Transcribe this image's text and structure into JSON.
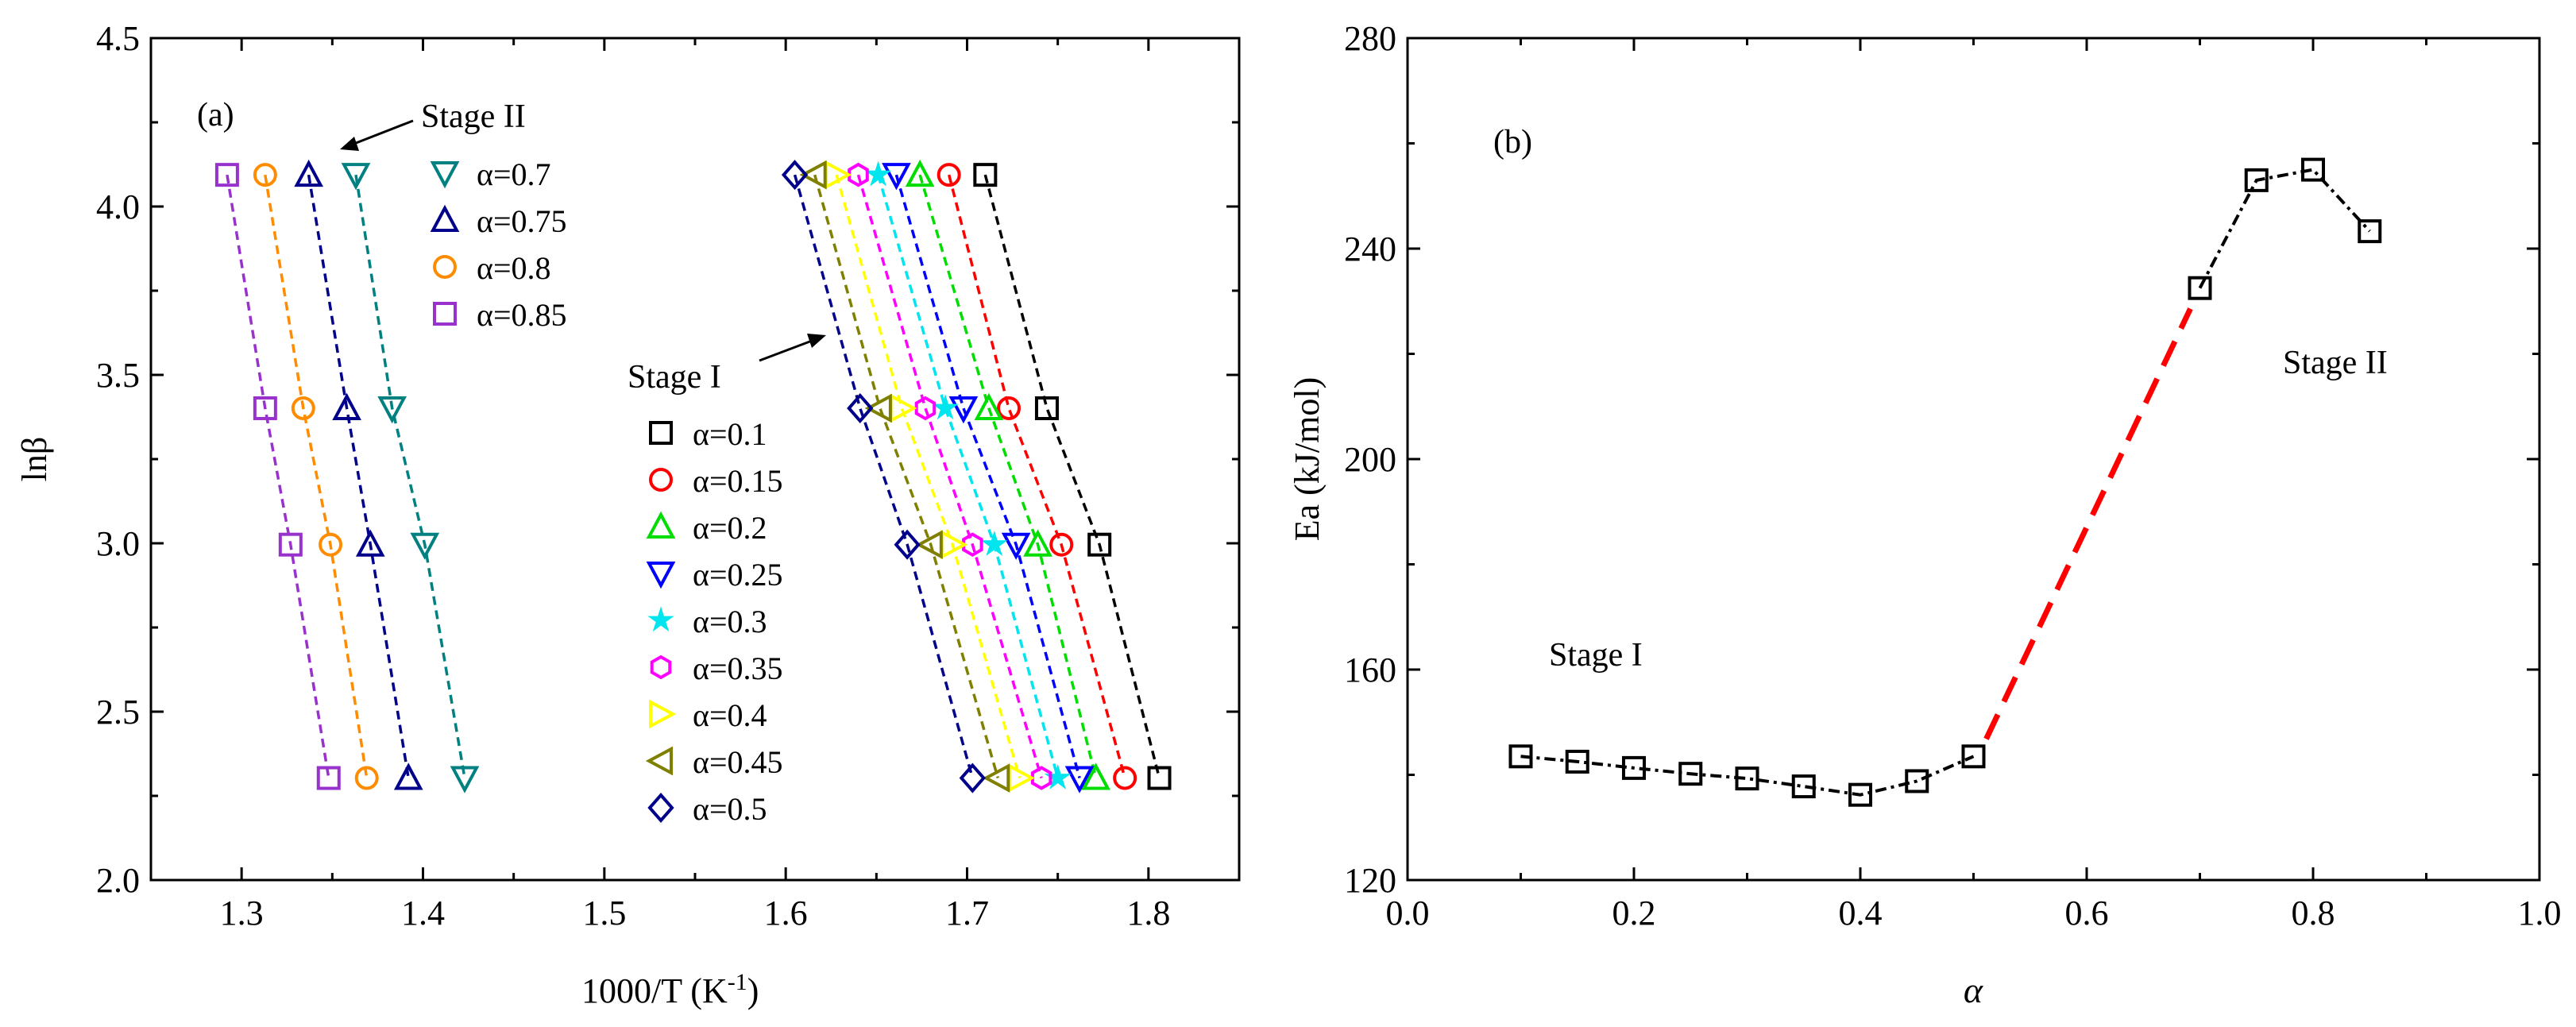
{
  "chart_data": [
    {
      "type": "scatter",
      "panel_label": "(a)",
      "xlabel": "1000/T (K",
      "xlabel_sup": "-1",
      "xlabel_close": ")",
      "ylabel": "lnβ",
      "xlim": [
        1.25,
        1.85
      ],
      "ylim": [
        2.0,
        4.5
      ],
      "xticks": [
        1.3,
        1.4,
        1.5,
        1.6,
        1.7,
        1.8
      ],
      "xtick_labels": [
        "1.3",
        "1.4",
        "1.5",
        "1.6",
        "1.7",
        "1.8"
      ],
      "yticks": [
        2.0,
        2.5,
        3.0,
        3.5,
        4.0,
        4.5
      ],
      "ytick_labels": [
        "2.0",
        "2.5",
        "3.0",
        "3.5",
        "4.0",
        "4.5"
      ],
      "y_levels": [
        4.094,
        3.401,
        2.996,
        2.303
      ],
      "annotations": {
        "stage2": "Stage II",
        "stage1": "Stage I"
      },
      "series": [
        {
          "name": "α=0.1",
          "group": "stage1",
          "marker": "square",
          "color": "#000000",
          "x": [
            1.71,
            1.744,
            1.773,
            1.806
          ]
        },
        {
          "name": "α=0.15",
          "group": "stage1",
          "marker": "circle",
          "color": "#ff0000",
          "x": [
            1.69,
            1.723,
            1.752,
            1.787
          ]
        },
        {
          "name": "α=0.2",
          "group": "stage1",
          "marker": "triangle",
          "color": "#00dd00",
          "x": [
            1.674,
            1.712,
            1.739,
            1.771
          ]
        },
        {
          "name": "α=0.25",
          "group": "stage1",
          "marker": "tri-down",
          "color": "#0000ff",
          "x": [
            1.661,
            1.698,
            1.727,
            1.762
          ]
        },
        {
          "name": "α=0.3",
          "group": "stage1",
          "marker": "star",
          "color": "#00e5ee",
          "x": [
            1.651,
            1.688,
            1.715,
            1.75
          ]
        },
        {
          "name": "α=0.35",
          "group": "stage1",
          "marker": "hexagon",
          "color": "#ff00ff",
          "x": [
            1.64,
            1.677,
            1.703,
            1.741
          ]
        },
        {
          "name": "α=0.4",
          "group": "stage1",
          "marker": "tri-right",
          "color": "#ffff00",
          "x": [
            1.628,
            1.664,
            1.692,
            1.729
          ]
        },
        {
          "name": "α=0.45",
          "group": "stage1",
          "marker": "tri-left",
          "color": "#808000",
          "x": [
            1.616,
            1.652,
            1.68,
            1.717
          ]
        },
        {
          "name": "α=0.5",
          "group": "stage1",
          "marker": "diamond",
          "color": "#00008b",
          "x": [
            1.605,
            1.641,
            1.667,
            1.703
          ]
        },
        {
          "name": "α=0.7",
          "group": "stage2",
          "marker": "tri-down",
          "color": "#008080",
          "x": [
            1.363,
            1.383,
            1.401,
            1.423
          ]
        },
        {
          "name": "α=0.75",
          "group": "stage2",
          "marker": "triangle",
          "color": "#00008b",
          "x": [
            1.337,
            1.358,
            1.371,
            1.392
          ]
        },
        {
          "name": "α=0.8",
          "group": "stage2",
          "marker": "circle",
          "color": "#ff8c00",
          "x": [
            1.313,
            1.334,
            1.349,
            1.369
          ]
        },
        {
          "name": "α=0.85",
          "group": "stage2",
          "marker": "square",
          "color": "#9932cc",
          "x": [
            1.292,
            1.313,
            1.327,
            1.348
          ]
        }
      ]
    },
    {
      "type": "line",
      "panel_label": "(b)",
      "xlabel": "α",
      "ylabel": "Ea (kJ/mol)",
      "xlim": [
        0.0,
        1.0
      ],
      "ylim": [
        120,
        280
      ],
      "xticks": [
        0.0,
        0.2,
        0.4,
        0.6,
        0.8,
        1.0
      ],
      "xtick_labels": [
        "0.0",
        "0.2",
        "0.4",
        "0.6",
        "0.8",
        "1.0"
      ],
      "yticks": [
        120,
        160,
        200,
        240,
        280
      ],
      "ytick_labels": [
        "120",
        "160",
        "200",
        "240",
        "280"
      ],
      "annotations": {
        "stage1": "Stage I",
        "stage2": "Stage II"
      },
      "series": [
        {
          "name": "Ea",
          "marker": "square",
          "color": "#000000",
          "x": [
            0.1,
            0.15,
            0.2,
            0.25,
            0.3,
            0.35,
            0.4,
            0.45,
            0.5,
            0.7,
            0.75,
            0.8,
            0.85
          ],
          "y": [
            143.5,
            142.5,
            141.3,
            140.2,
            139.3,
            137.8,
            136.2,
            138.8,
            143.5,
            232.5,
            253.0,
            255.0,
            243.3
          ]
        }
      ],
      "transition": {
        "color": "#ff0000",
        "from_x": 0.5,
        "to_x": 0.7
      }
    }
  ]
}
